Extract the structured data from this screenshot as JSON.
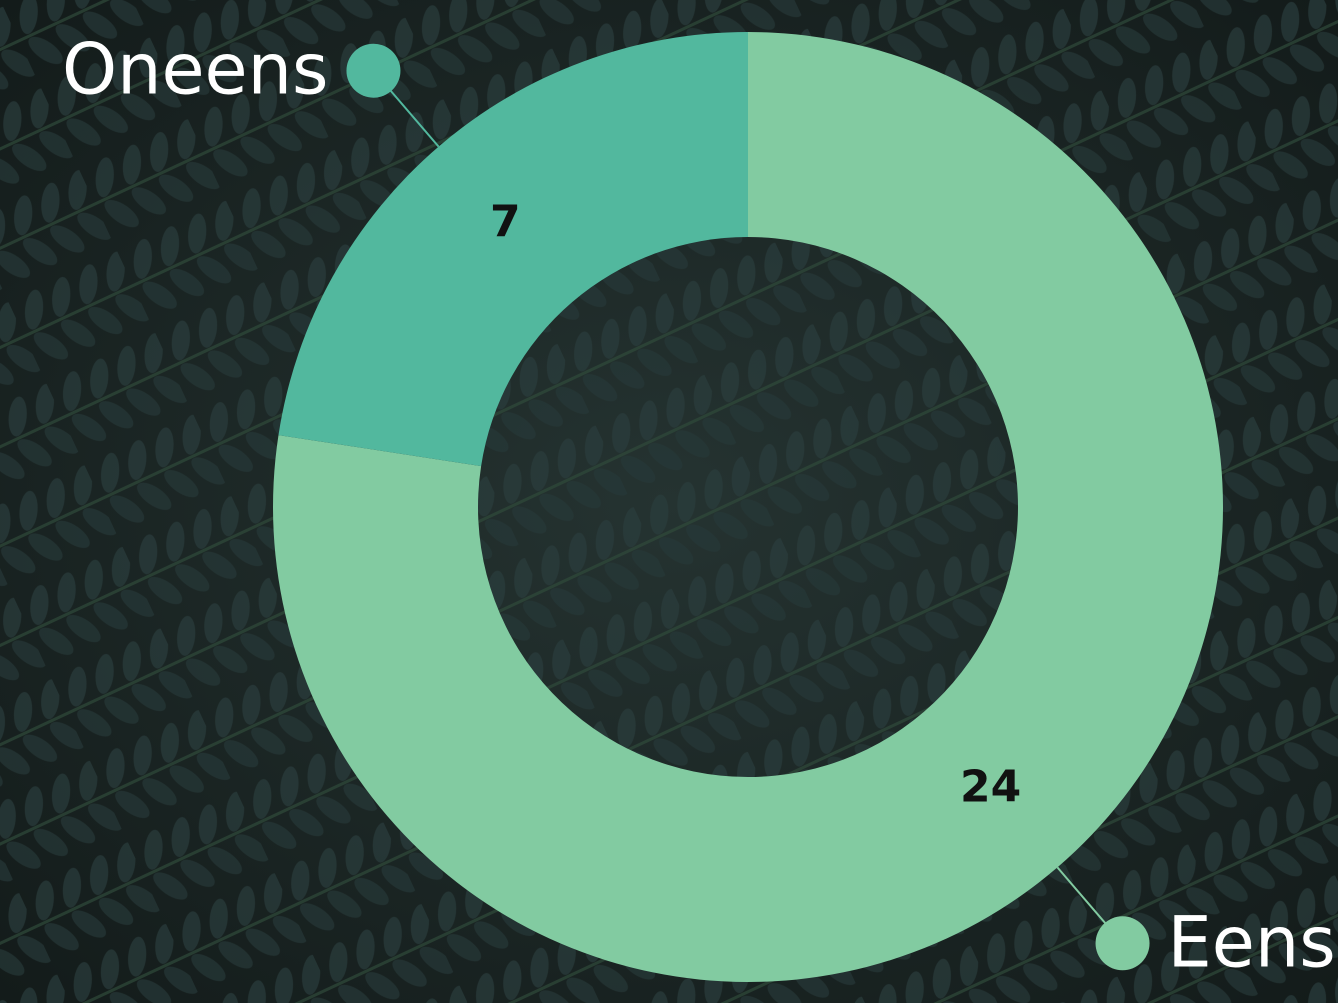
{
  "chart_data": {
    "type": "donut",
    "categories": [
      "Eens",
      "Oneens"
    ],
    "values": [
      24,
      7
    ],
    "colors": [
      "#82cba1",
      "#52b89e"
    ]
  }
}
